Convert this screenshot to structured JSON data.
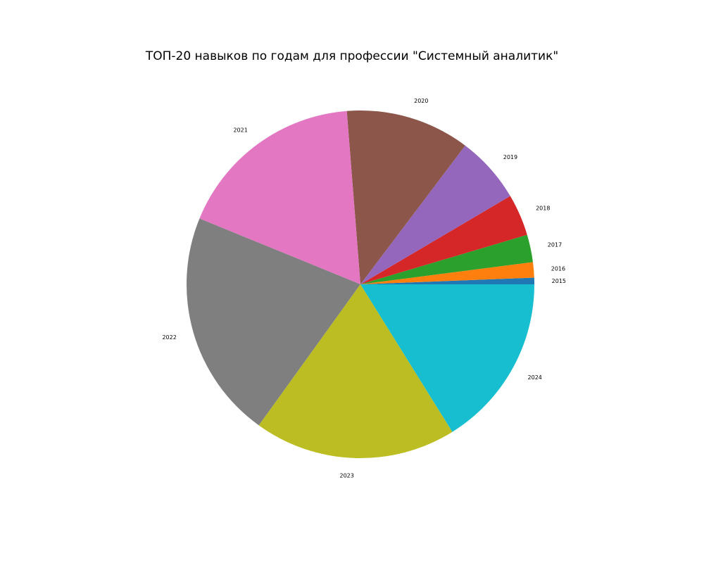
{
  "chart_data": {
    "type": "pie",
    "title": "ТОП-20 навыков по годам для профессии \"Системный аналитик\"",
    "categories": [
      "2015",
      "2016",
      "2017",
      "2018",
      "2019",
      "2020",
      "2021",
      "2022",
      "2023",
      "2024"
    ],
    "values": [
      0.6,
      1.4,
      2.5,
      3.8,
      6.1,
      11.3,
      17.2,
      20.8,
      18.4,
      15.8
    ],
    "colors": [
      "#1f77b4",
      "#ff7f0e",
      "#2ca02c",
      "#d62728",
      "#9467bd",
      "#8c564b",
      "#e377c2",
      "#7f7f7f",
      "#bcbd22",
      "#17becf"
    ],
    "start_angle_deg": 0,
    "direction": "counterclockwise",
    "legend": "none"
  }
}
